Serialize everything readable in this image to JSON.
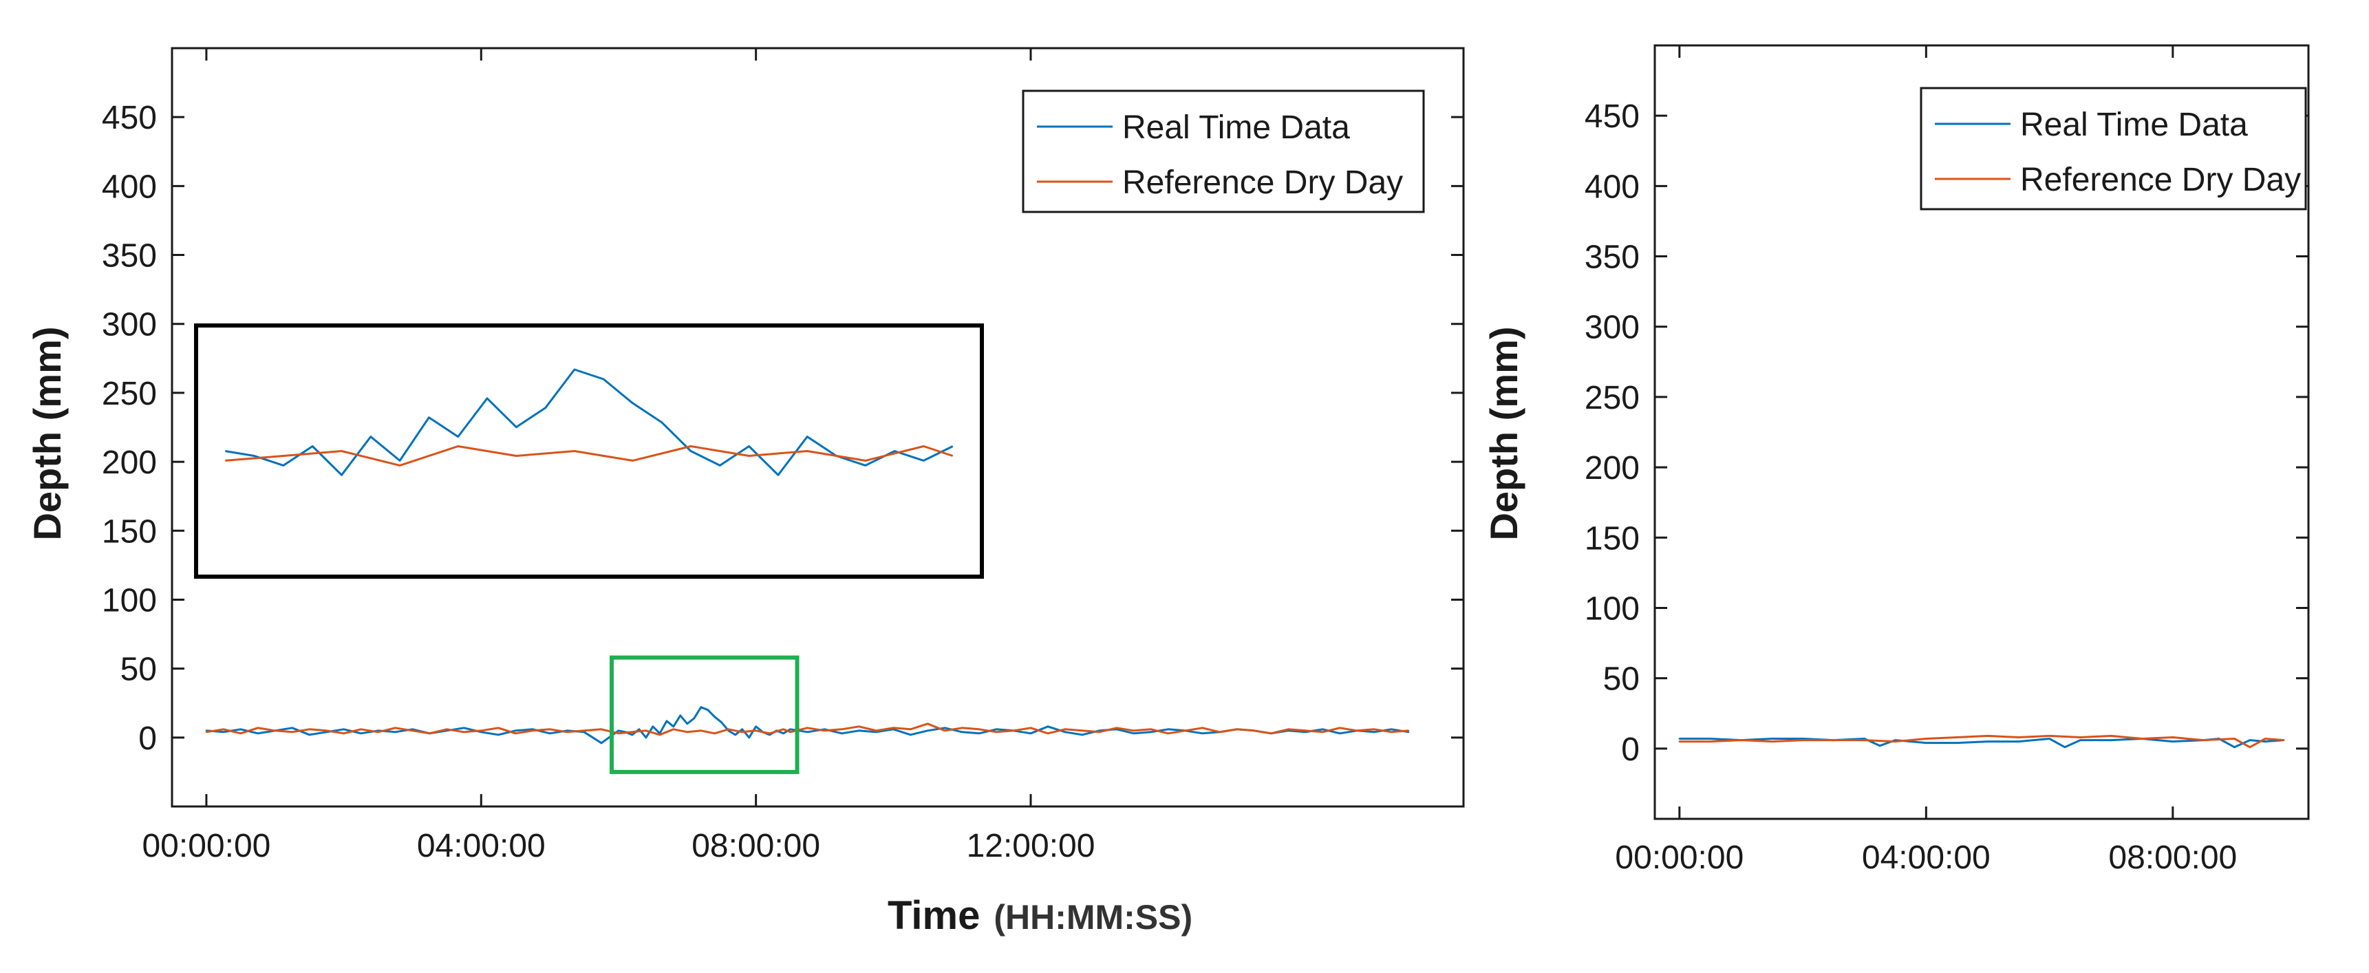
{
  "colors": {
    "real_time": "#0072BD",
    "reference": "#D95319",
    "inset_box": "#000000",
    "highlight_box": "#1FAF50",
    "axis": "#1a1a1a"
  },
  "chart_data": [
    {
      "type": "line",
      "panel": "left",
      "ylabel": "Depth (mm)",
      "xlabel_main": "Time",
      "xlabel_unit": "(HH:MM:SS)",
      "ylim": [
        -50,
        500
      ],
      "yticks": [
        0,
        50,
        100,
        150,
        200,
        250,
        300,
        350,
        400,
        450
      ],
      "ytick_labels": [
        "0",
        "50",
        "100",
        "150",
        "200",
        "250",
        "300",
        "350",
        "400",
        "450"
      ],
      "xlim_hours": [
        -0.5,
        18.3
      ],
      "xticks_hours": [
        0,
        4,
        8,
        12
      ],
      "xtick_labels": [
        "00:00:00",
        "04:00:00",
        "08:00:00",
        "12:00:00"
      ],
      "legend_location": "top-right",
      "legend": [
        "Real Time Data",
        "Reference Dry Day"
      ],
      "highlight_window_hours": [
        5.9,
        8.6
      ],
      "highlight_window_depth": [
        -25,
        58
      ],
      "series": [
        {
          "name": "Real Time Data",
          "x_hours": [
            0,
            0.25,
            0.5,
            0.75,
            1,
            1.25,
            1.5,
            1.75,
            2,
            2.25,
            2.5,
            2.75,
            3,
            3.25,
            3.5,
            3.75,
            4,
            4.25,
            4.5,
            4.75,
            5,
            5.25,
            5.5,
            5.75,
            6,
            6.1,
            6.2,
            6.3,
            6.4,
            6.5,
            6.6,
            6.7,
            6.8,
            6.9,
            7.0,
            7.1,
            7.2,
            7.3,
            7.4,
            7.5,
            7.6,
            7.7,
            7.8,
            7.9,
            8.0,
            8.1,
            8.2,
            8.3,
            8.4,
            8.5,
            8.75,
            9,
            9.25,
            9.5,
            9.75,
            10,
            10.25,
            10.5,
            10.75,
            11,
            11.25,
            11.5,
            11.75,
            12,
            12.25,
            12.5,
            12.75,
            13,
            13.25,
            13.5,
            13.75,
            14,
            14.25,
            14.5,
            14.75,
            15,
            15.25,
            15.5,
            15.75,
            16,
            16.25,
            16.5,
            16.75,
            17,
            17.25,
            17.5
          ],
          "values": [
            5,
            4,
            6,
            3,
            5,
            7,
            2,
            4,
            6,
            3,
            5,
            4,
            6,
            3,
            5,
            7,
            4,
            2,
            5,
            6,
            3,
            5,
            4,
            -4,
            5,
            4,
            2,
            6,
            0,
            8,
            3,
            12,
            8,
            16,
            10,
            14,
            22,
            20,
            15,
            11,
            5,
            2,
            6,
            0,
            8,
            4,
            2,
            5,
            3,
            6,
            4,
            6,
            3,
            5,
            4,
            6,
            2,
            5,
            7,
            4,
            3,
            6,
            5,
            3,
            8,
            4,
            2,
            5,
            6,
            3,
            4,
            6,
            5,
            3,
            4,
            6,
            5,
            3,
            5,
            4,
            6,
            3,
            5,
            4,
            6,
            4
          ]
        },
        {
          "name": "Reference Dry Day",
          "x_hours": [
            0,
            0.25,
            0.5,
            0.75,
            1,
            1.25,
            1.5,
            1.75,
            2,
            2.25,
            2.5,
            2.75,
            3,
            3.25,
            3.5,
            3.75,
            4,
            4.25,
            4.5,
            4.75,
            5,
            5.25,
            5.5,
            5.75,
            6,
            6.2,
            6.4,
            6.6,
            6.8,
            7.0,
            7.2,
            7.4,
            7.6,
            7.8,
            8.0,
            8.2,
            8.4,
            8.5,
            8.75,
            9,
            9.25,
            9.5,
            9.75,
            10,
            10.25,
            10.5,
            10.75,
            11,
            11.25,
            11.5,
            11.75,
            12,
            12.25,
            12.5,
            12.75,
            13,
            13.25,
            13.5,
            13.75,
            14,
            14.25,
            14.5,
            14.75,
            15,
            15.25,
            15.5,
            15.75,
            16,
            16.25,
            16.5,
            16.75,
            17,
            17.25,
            17.5
          ],
          "values": [
            4,
            6,
            3,
            7,
            5,
            4,
            6,
            5,
            3,
            6,
            4,
            7,
            5,
            3,
            6,
            4,
            5,
            7,
            3,
            5,
            6,
            4,
            5,
            6,
            3,
            4,
            5,
            2,
            6,
            4,
            5,
            3,
            6,
            4,
            5,
            3,
            6,
            4,
            7,
            5,
            6,
            8,
            5,
            7,
            6,
            10,
            5,
            7,
            6,
            4,
            5,
            7,
            3,
            6,
            5,
            4,
            7,
            5,
            6,
            3,
            5,
            7,
            4,
            6,
            5,
            3,
            6,
            5,
            4,
            7,
            5,
            6,
            4,
            5
          ]
        }
      ]
    },
    {
      "type": "line",
      "panel": "right",
      "ylabel": "Depth (mm)",
      "ylim": [
        -50,
        500
      ],
      "yticks": [
        0,
        50,
        100,
        150,
        200,
        250,
        300,
        350,
        400,
        450
      ],
      "ytick_labels": [
        "0",
        "50",
        "100",
        "150",
        "200",
        "250",
        "300",
        "350",
        "400",
        "450"
      ],
      "xlim_hours": [
        -0.4,
        10.2
      ],
      "xticks_hours": [
        0,
        4,
        8
      ],
      "xtick_labels": [
        "00:00:00",
        "04:00:00",
        "08:00:00"
      ],
      "legend_location": "top-right",
      "legend": [
        "Real Time Data",
        "Reference Dry Day"
      ],
      "series": [
        {
          "name": "Real Time Data",
          "x_hours": [
            0,
            0.5,
            1,
            1.5,
            2,
            2.5,
            3,
            3.25,
            3.5,
            4,
            4.5,
            5,
            5.5,
            6,
            6.25,
            6.5,
            7,
            7.5,
            8,
            8.5,
            8.75,
            9,
            9.25,
            9.5,
            9.8
          ],
          "values": [
            7,
            7,
            6,
            7,
            7,
            6,
            7,
            2,
            6,
            4,
            4,
            5,
            5,
            7,
            1,
            6,
            6,
            7,
            5,
            6,
            7,
            1,
            6,
            5,
            6
          ]
        },
        {
          "name": "Reference Dry Day",
          "x_hours": [
            0,
            0.5,
            1,
            1.5,
            2,
            2.5,
            3,
            3.5,
            4,
            4.5,
            5,
            5.5,
            6,
            6.5,
            7,
            7.5,
            8,
            8.5,
            9,
            9.25,
            9.5,
            9.8
          ],
          "values": [
            5,
            5,
            6,
            5,
            6,
            6,
            6,
            5,
            7,
            8,
            9,
            8,
            9,
            8,
            9,
            7,
            8,
            6,
            7,
            1,
            7,
            6
          ]
        }
      ]
    }
  ],
  "inset": {
    "source_panel": "left",
    "zoom_window_hours": [
      5.9,
      8.6
    ],
    "zoom_window_depth": [
      -25,
      58
    ]
  }
}
